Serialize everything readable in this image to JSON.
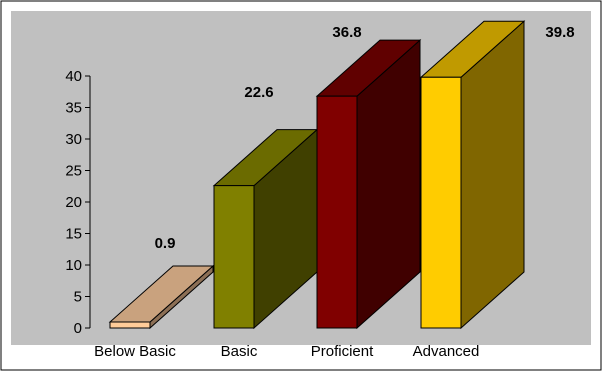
{
  "chart_data": {
    "type": "bar",
    "style": "3d-column",
    "categories": [
      "Below Basic",
      "Basic",
      "Proficient",
      "Advanced"
    ],
    "values": [
      0.9,
      22.6,
      36.8,
      39.8
    ],
    "data_labels": [
      "0.9",
      "22.6",
      "36.8",
      "39.8"
    ],
    "ylim": [
      0,
      40
    ],
    "yticks": [
      "0",
      "5",
      "10",
      "15",
      "20",
      "25",
      "30",
      "35",
      "40"
    ],
    "grid": false,
    "legend": "none",
    "plot_background": "#c0c0c0",
    "bar_colors": [
      {
        "front": "#ffcc99",
        "top": "#c9a27e",
        "side": "#8c6f55"
      },
      {
        "front": "#808000",
        "top": "#6b6b00",
        "side": "#404000"
      },
      {
        "front": "#800000",
        "top": "#600000",
        "side": "#400000"
      },
      {
        "front": "#ffcc00",
        "top": "#c09a00",
        "side": "#806600"
      }
    ]
  }
}
